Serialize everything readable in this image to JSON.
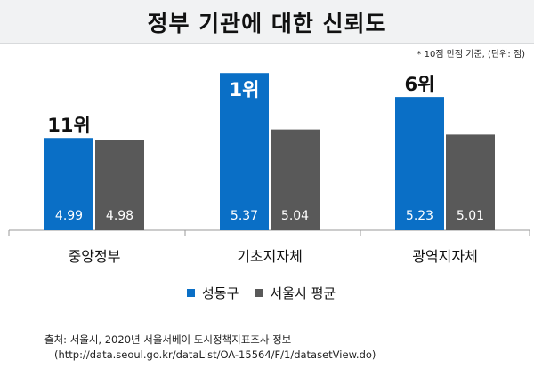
{
  "header": {
    "title": "정부 기관에 대한 신뢰도",
    "unit_note": "* 10점 만점 기준, (단위: 점)"
  },
  "chart_data": {
    "type": "bar",
    "title": "정부 기관에 대한 신뢰도",
    "categories": [
      "중앙정부",
      "기초지자체",
      "광역지자체"
    ],
    "series": [
      {
        "name": "성동구",
        "color": "#0a6fc6",
        "values": [
          4.99,
          5.37,
          5.23
        ],
        "labels": [
          "4.99",
          "5.37",
          "5.23"
        ]
      },
      {
        "name": "서울시 평균",
        "color": "#595959",
        "values": [
          4.98,
          5.04,
          5.01
        ],
        "labels": [
          "4.98",
          "5.04",
          "5.01"
        ]
      }
    ],
    "rank_labels": [
      "11위",
      "1위",
      "6위"
    ],
    "ylim": [
      4.45,
      5.47
    ],
    "xlabel": "",
    "ylabel": "",
    "grid": false
  },
  "legend": [
    {
      "label": "성동구",
      "color": "#0a6fc6"
    },
    {
      "label": "서울시 평균",
      "color": "#595959"
    }
  ],
  "source": {
    "line1": "출처: 서울시, 2020년 서울서베이 도시정책지표조사 정보",
    "line2": "(http://data.seoul.go.kr/dataList/OA-15564/F/1/datasetView.do)"
  }
}
